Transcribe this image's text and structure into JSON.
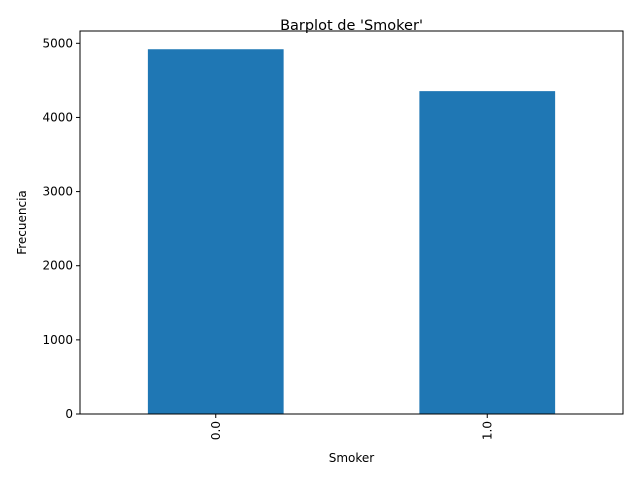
{
  "chart_data": {
    "type": "bar",
    "title": "Barplot de 'Smoker'",
    "xlabel": "Smoker",
    "ylabel": "Frecuencia",
    "categories": [
      "0.0",
      "1.0"
    ],
    "values": [
      4920,
      4355
    ],
    "ylim": [
      0,
      5166
    ],
    "yticks": [
      0,
      1000,
      2000,
      3000,
      4000,
      5000
    ],
    "xtick_rotation": 90,
    "bar_color": "#1f77b4",
    "grid": false,
    "legend": false
  }
}
